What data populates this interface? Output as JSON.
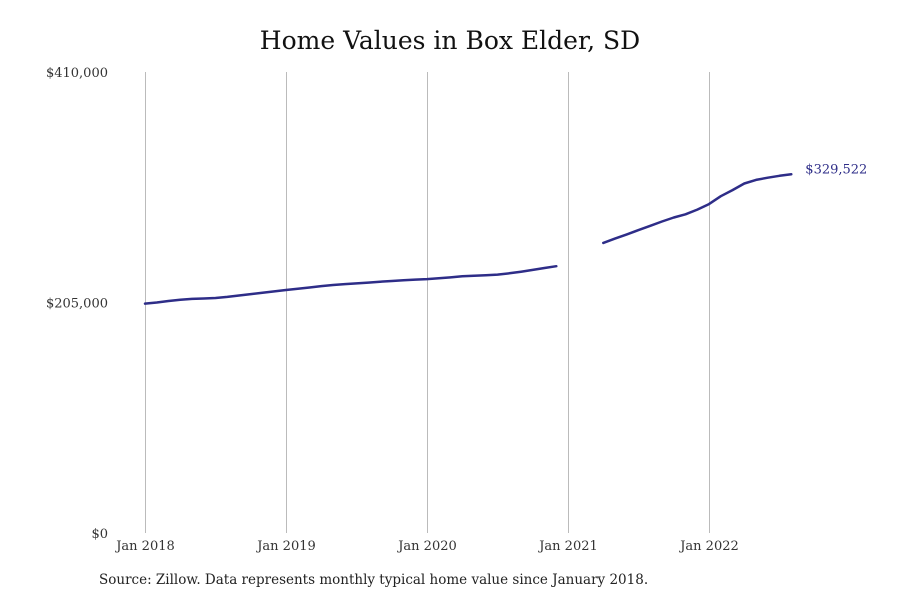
{
  "chart_data": {
    "type": "line",
    "title": "Home Values in Box Elder, SD",
    "source": "Source: Zillow. Data represents monthly typical home value since January 2018.",
    "xlabel": "",
    "ylabel": "",
    "x_range": [
      "2018-01",
      "2022-12"
    ],
    "ylim": [
      0,
      410000
    ],
    "y_ticks": [
      {
        "value": 0,
        "label": "$0"
      },
      {
        "value": 205000,
        "label": "$205,000"
      },
      {
        "value": 410000,
        "label": "$410,000"
      }
    ],
    "x_ticks": [
      {
        "date": "2018-01",
        "label": "Jan 2018"
      },
      {
        "date": "2019-01",
        "label": "Jan 2019"
      },
      {
        "date": "2020-01",
        "label": "Jan 2020"
      },
      {
        "date": "2021-01",
        "label": "Jan 2021"
      },
      {
        "date": "2022-01",
        "label": "Jan 2022"
      }
    ],
    "grid": {
      "vertical": true,
      "horizontal": false
    },
    "colors": {
      "line": "#2e2d88",
      "grid": "#bbbbbb"
    },
    "end_label": "$329,522",
    "segments": [
      {
        "points": [
          {
            "x": "2018-01",
            "y": 204000
          },
          {
            "x": "2018-02",
            "y": 205000
          },
          {
            "x": "2018-03",
            "y": 206300
          },
          {
            "x": "2018-04",
            "y": 207500
          },
          {
            "x": "2018-05",
            "y": 208200
          },
          {
            "x": "2018-06",
            "y": 208600
          },
          {
            "x": "2018-07",
            "y": 209000
          },
          {
            "x": "2018-08",
            "y": 210000
          },
          {
            "x": "2018-09",
            "y": 211200
          },
          {
            "x": "2018-10",
            "y": 212500
          },
          {
            "x": "2018-11",
            "y": 213700
          },
          {
            "x": "2018-12",
            "y": 214900
          },
          {
            "x": "2019-01",
            "y": 216100
          },
          {
            "x": "2019-02",
            "y": 217200
          },
          {
            "x": "2019-03",
            "y": 218300
          },
          {
            "x": "2019-04",
            "y": 219600
          },
          {
            "x": "2019-05",
            "y": 220600
          },
          {
            "x": "2019-06",
            "y": 221400
          },
          {
            "x": "2019-07",
            "y": 222000
          },
          {
            "x": "2019-08",
            "y": 222700
          },
          {
            "x": "2019-09",
            "y": 223500
          },
          {
            "x": "2019-10",
            "y": 224100
          },
          {
            "x": "2019-11",
            "y": 224800
          },
          {
            "x": "2019-12",
            "y": 225400
          },
          {
            "x": "2020-01",
            "y": 225800
          },
          {
            "x": "2020-02",
            "y": 226500
          },
          {
            "x": "2020-03",
            "y": 227300
          },
          {
            "x": "2020-04",
            "y": 228300
          },
          {
            "x": "2020-05",
            "y": 228800
          },
          {
            "x": "2020-06",
            "y": 229300
          },
          {
            "x": "2020-07",
            "y": 229800
          },
          {
            "x": "2020-08",
            "y": 231000
          },
          {
            "x": "2020-09",
            "y": 232400
          },
          {
            "x": "2020-10",
            "y": 234000
          },
          {
            "x": "2020-11",
            "y": 235700
          },
          {
            "x": "2020-12",
            "y": 237300
          }
        ]
      },
      {
        "points": [
          {
            "x": "2021-04",
            "y": 258000
          },
          {
            "x": "2021-05",
            "y": 261800
          },
          {
            "x": "2021-06",
            "y": 265600
          },
          {
            "x": "2021-07",
            "y": 269400
          },
          {
            "x": "2021-08",
            "y": 273200
          },
          {
            "x": "2021-09",
            "y": 277000
          },
          {
            "x": "2021-10",
            "y": 280600
          },
          {
            "x": "2021-11",
            "y": 283400
          },
          {
            "x": "2021-12",
            "y": 287600
          },
          {
            "x": "2022-01",
            "y": 292500
          },
          {
            "x": "2022-02",
            "y": 299500
          },
          {
            "x": "2022-03",
            "y": 305000
          },
          {
            "x": "2022-04",
            "y": 310800
          },
          {
            "x": "2022-05",
            "y": 314000
          },
          {
            "x": "2022-06",
            "y": 316000
          },
          {
            "x": "2022-07",
            "y": 317700
          },
          {
            "x": "2022-08",
            "y": 319000
          }
        ]
      }
    ]
  }
}
